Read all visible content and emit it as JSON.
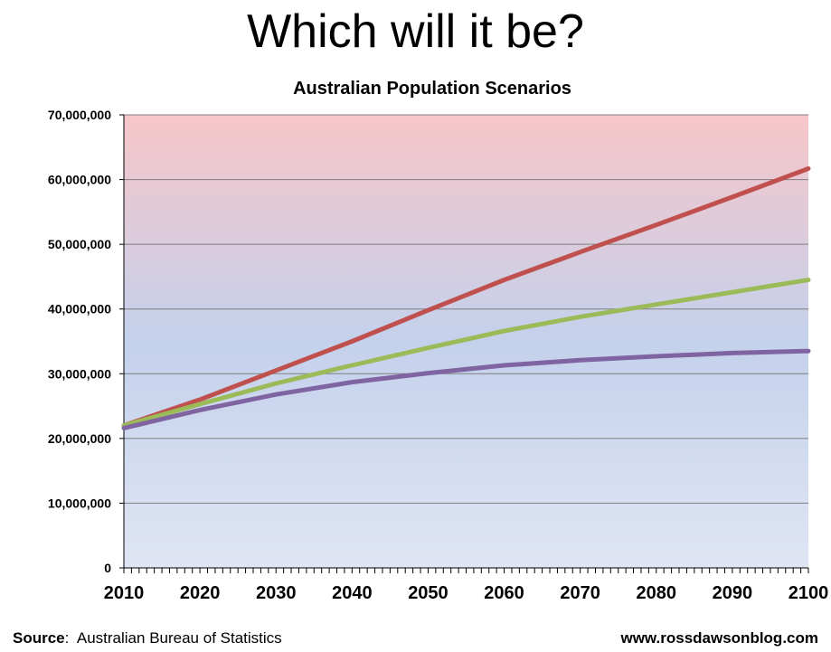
{
  "headline": "Which will it be?",
  "footer": {
    "source_label": "Source",
    "source_text": "Australian Bureau of Statistics",
    "website": "www.rossdawsonblog.com"
  },
  "chart_data": {
    "type": "line",
    "title": "Australian Population Scenarios",
    "xlim": [
      2010,
      2100
    ],
    "ylim": [
      0,
      70000000
    ],
    "x_ticks": [
      2010,
      2020,
      2030,
      2040,
      2050,
      2060,
      2070,
      2080,
      2090,
      2100
    ],
    "x_tick_labels": [
      "2010",
      "2020",
      "2030",
      "2040",
      "2050",
      "2060",
      "2070",
      "2080",
      "2090",
      "2100"
    ],
    "y_ticks": [
      0,
      10000000,
      20000000,
      30000000,
      40000000,
      50000000,
      60000000,
      70000000
    ],
    "y_tick_labels": [
      "0",
      "10,000,000",
      "20,000,000",
      "30,000,000",
      "40,000,000",
      "50,000,000",
      "60,000,000",
      "70,000,000"
    ],
    "grid": true,
    "background": {
      "top": "#f7c6c9",
      "middle": "#c4d1ec",
      "bottom": "#dfe5f3"
    },
    "series": [
      {
        "color": "#c0504d",
        "x": [
          2010,
          2020,
          2030,
          2040,
          2050,
          2060,
          2070,
          2080,
          2090,
          2100
        ],
        "y": [
          22000000,
          26000000,
          30500000,
          35000000,
          39800000,
          44500000,
          48800000,
          53000000,
          57300000,
          61700000
        ]
      },
      {
        "color": "#9bbb59",
        "x": [
          2010,
          2020,
          2030,
          2040,
          2050,
          2060,
          2070,
          2080,
          2090,
          2100
        ],
        "y": [
          22000000,
          25300000,
          28500000,
          31300000,
          34000000,
          36600000,
          38800000,
          40700000,
          42600000,
          44500000
        ]
      },
      {
        "color": "#8064a2",
        "x": [
          2010,
          2020,
          2030,
          2040,
          2050,
          2060,
          2070,
          2080,
          2090,
          2100
        ],
        "y": [
          21600000,
          24400000,
          26800000,
          28700000,
          30100000,
          31300000,
          32100000,
          32700000,
          33200000,
          33500000
        ]
      }
    ]
  }
}
